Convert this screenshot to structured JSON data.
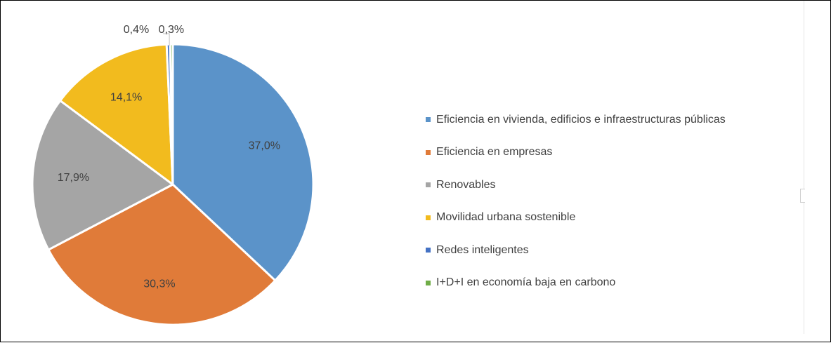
{
  "chart_data": {
    "type": "pie",
    "slices": [
      {
        "name": "Eficiencia en vivienda, edificios e infraestructuras públicas",
        "value": 37.0,
        "label": "37,0%",
        "color": "#5B93C9"
      },
      {
        "name": "Eficiencia en empresas",
        "value": 30.3,
        "label": "30,3%",
        "color": "#E07B39"
      },
      {
        "name": "Renovables",
        "value": 17.9,
        "label": "17,9%",
        "color": "#A5A5A5"
      },
      {
        "name": "Movilidad urbana sostenible",
        "value": 14.1,
        "label": "14,1%",
        "color": "#F2BB1E"
      },
      {
        "name": "Redes inteligentes",
        "value": 0.4,
        "label": "0,4%",
        "color": "#4472C4"
      },
      {
        "name": "I+D+I en economía baja en carbono",
        "value": 0.3,
        "label": "0,3%",
        "color": "#70AD47"
      }
    ],
    "legend_position": "right"
  },
  "legend": {
    "items": [
      {
        "label": "Eficiencia en vivienda, edificios e infraestructuras públicas",
        "color": "#5B93C9"
      },
      {
        "label": "Eficiencia en empresas",
        "color": "#E07B39"
      },
      {
        "label": "Renovables",
        "color": "#A5A5A5"
      },
      {
        "label": "Movilidad urbana sostenible",
        "color": "#F2BB1E"
      },
      {
        "label": "Redes inteligentes",
        "color": "#4472C4"
      },
      {
        "label": "I+D+I en economía baja en carbono",
        "color": "#70AD47"
      }
    ]
  }
}
